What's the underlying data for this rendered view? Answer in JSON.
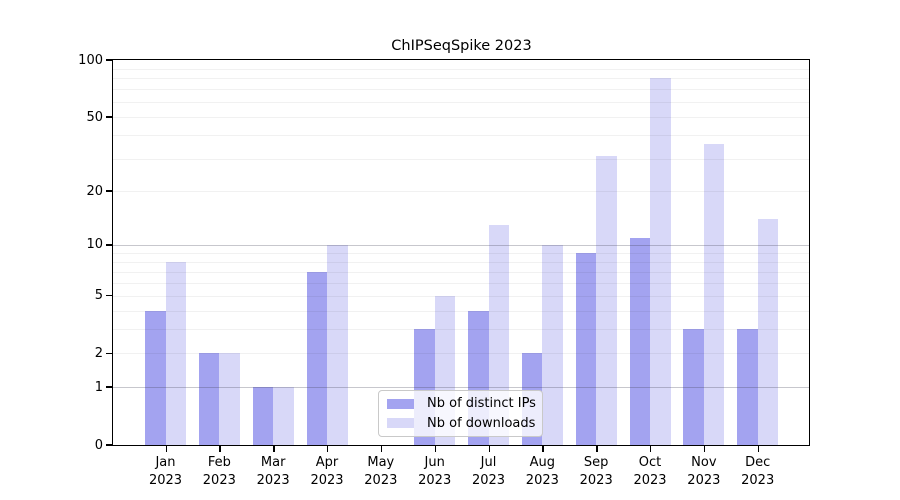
{
  "chart_data": {
    "type": "bar",
    "title": "ChIPSeqSpike 2023",
    "categories": [
      "Jan 2023",
      "Feb 2023",
      "Mar 2023",
      "Apr 2023",
      "May 2023",
      "Jun 2023",
      "Jul 2023",
      "Aug 2023",
      "Sep 2023",
      "Oct 2023",
      "Nov 2023",
      "Dec 2023"
    ],
    "series": [
      {
        "name": "Nb of distinct IPs",
        "color": "#a3a3f0",
        "values": [
          4,
          2,
          1,
          7,
          0,
          3,
          4,
          2,
          9,
          11,
          3,
          3
        ]
      },
      {
        "name": "Nb of downloads",
        "color": "#d8d8f8",
        "values": [
          8,
          2,
          1,
          10,
          0,
          5,
          13,
          10,
          31,
          80,
          36,
          14
        ]
      }
    ],
    "xlabel": "",
    "ylabel": "",
    "yscale": "log1p",
    "ylim": [
      0,
      100
    ],
    "y_ticks": [
      100,
      50,
      20,
      10,
      5,
      2,
      1,
      0
    ],
    "grid": "horizontal",
    "legend_position": "inside-bottom-center"
  }
}
